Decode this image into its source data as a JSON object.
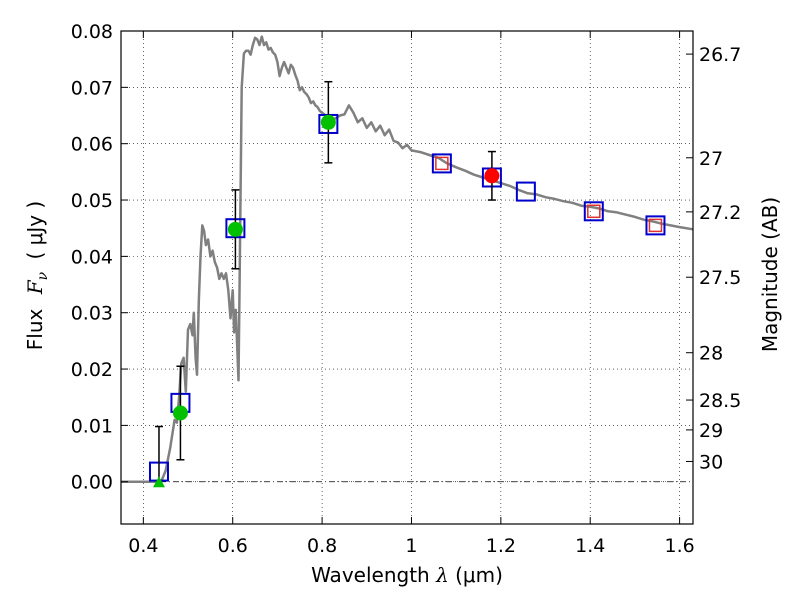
{
  "chart_data": {
    "type": "scatter",
    "title": "",
    "xlabel_text": "Wavelength",
    "xlabel_symbol": "λ",
    "xlabel_unit": "(μm)",
    "ylabel_text": "Flux",
    "ylabel_symbol": "F",
    "ylabel_sub": "ν",
    "ylabel_unit": "( μJy )",
    "y2label": "Magnitude (AB)",
    "xlim": [
      0.35,
      1.63
    ],
    "ylim": [
      -0.0075,
      0.08
    ],
    "grid": true,
    "x_ticks": [
      {
        "value": 0.4,
        "label": "0.4"
      },
      {
        "value": 0.6,
        "label": "0.6"
      },
      {
        "value": 0.8,
        "label": "0.8"
      },
      {
        "value": 1.0,
        "label": "1"
      },
      {
        "value": 1.2,
        "label": "1.2"
      },
      {
        "value": 1.4,
        "label": "1.4"
      },
      {
        "value": 1.6,
        "label": "1.6"
      }
    ],
    "y_ticks": [
      {
        "value": 0.0,
        "label": "0.00"
      },
      {
        "value": 0.01,
        "label": "0.01"
      },
      {
        "value": 0.02,
        "label": "0.02"
      },
      {
        "value": 0.03,
        "label": "0.03"
      },
      {
        "value": 0.04,
        "label": "0.04"
      },
      {
        "value": 0.05,
        "label": "0.05"
      },
      {
        "value": 0.06,
        "label": "0.06"
      },
      {
        "value": 0.07,
        "label": "0.07"
      },
      {
        "value": 0.08,
        "label": "0.08"
      }
    ],
    "y2_ticks": [
      {
        "mag": "26.7",
        "flux": 0.0759
      },
      {
        "mag": "27",
        "flux": 0.0575
      },
      {
        "mag": "27.2",
        "flux": 0.0479
      },
      {
        "mag": "27.5",
        "flux": 0.0363
      },
      {
        "mag": "28",
        "flux": 0.0229
      },
      {
        "mag": "28.5",
        "flux": 0.0145
      },
      {
        "mag": "29",
        "flux": 0.0092
      },
      {
        "mag": "30",
        "flux": 0.0036
      }
    ],
    "model_sed": {
      "name": "model spectrum",
      "color": "#808080",
      "points": [
        [
          0.35,
          0.0
        ],
        [
          0.43,
          0.0
        ],
        [
          0.44,
          0.0
        ],
        [
          0.45,
          0.002
        ],
        [
          0.46,
          0.006
        ],
        [
          0.47,
          0.011
        ],
        [
          0.475,
          0.0105
        ],
        [
          0.48,
          0.015
        ],
        [
          0.485,
          0.021
        ],
        [
          0.49,
          0.022
        ],
        [
          0.495,
          0.016
        ],
        [
          0.5,
          0.027
        ],
        [
          0.505,
          0.028
        ],
        [
          0.51,
          0.026
        ],
        [
          0.513,
          0.03
        ],
        [
          0.517,
          0.022
        ],
        [
          0.52,
          0.019
        ],
        [
          0.524,
          0.032
        ],
        [
          0.528,
          0.04
        ],
        [
          0.532,
          0.0455
        ],
        [
          0.536,
          0.0445
        ],
        [
          0.54,
          0.042
        ],
        [
          0.545,
          0.043
        ],
        [
          0.55,
          0.04
        ],
        [
          0.555,
          0.041
        ],
        [
          0.56,
          0.039
        ],
        [
          0.565,
          0.038
        ],
        [
          0.57,
          0.036
        ],
        [
          0.575,
          0.037
        ],
        [
          0.58,
          0.036
        ],
        [
          0.585,
          0.037
        ],
        [
          0.59,
          0.034
        ],
        [
          0.595,
          0.029
        ],
        [
          0.6,
          0.034
        ],
        [
          0.603,
          0.0265
        ],
        [
          0.607,
          0.0305
        ],
        [
          0.61,
          0.024
        ],
        [
          0.613,
          0.018
        ],
        [
          0.615,
          0.032
        ],
        [
          0.62,
          0.07
        ],
        [
          0.625,
          0.076
        ],
        [
          0.63,
          0.0765
        ],
        [
          0.635,
          0.0765
        ],
        [
          0.64,
          0.0758
        ],
        [
          0.645,
          0.0775
        ],
        [
          0.65,
          0.0788
        ],
        [
          0.655,
          0.0785
        ],
        [
          0.66,
          0.0775
        ],
        [
          0.665,
          0.079
        ],
        [
          0.67,
          0.0775
        ],
        [
          0.675,
          0.078
        ],
        [
          0.68,
          0.0767
        ],
        [
          0.685,
          0.077
        ],
        [
          0.69,
          0.0762
        ],
        [
          0.695,
          0.0758
        ],
        [
          0.7,
          0.0745
        ],
        [
          0.705,
          0.072
        ],
        [
          0.71,
          0.0735
        ],
        [
          0.715,
          0.0745
        ],
        [
          0.72,
          0.0735
        ],
        [
          0.725,
          0.0725
        ],
        [
          0.73,
          0.074
        ],
        [
          0.735,
          0.0735
        ],
        [
          0.74,
          0.0722
        ],
        [
          0.745,
          0.0712
        ],
        [
          0.75,
          0.0695
        ],
        [
          0.755,
          0.07
        ],
        [
          0.76,
          0.0692
        ],
        [
          0.765,
          0.0688
        ],
        [
          0.77,
          0.0682
        ],
        [
          0.775,
          0.0672
        ],
        [
          0.78,
          0.0675
        ],
        [
          0.785,
          0.0668
        ],
        [
          0.79,
          0.0665
        ],
        [
          0.795,
          0.0658
        ],
        [
          0.8,
          0.0655
        ],
        [
          0.805,
          0.0652
        ],
        [
          0.81,
          0.0648
        ],
        [
          0.82,
          0.0642
        ],
        [
          0.83,
          0.0645
        ],
        [
          0.84,
          0.065
        ],
        [
          0.85,
          0.0652
        ],
        [
          0.86,
          0.0668
        ],
        [
          0.87,
          0.0655
        ],
        [
          0.88,
          0.0638
        ],
        [
          0.89,
          0.0645
        ],
        [
          0.9,
          0.0628
        ],
        [
          0.91,
          0.0638
        ],
        [
          0.92,
          0.0622
        ],
        [
          0.93,
          0.0632
        ],
        [
          0.94,
          0.0615
        ],
        [
          0.95,
          0.0625
        ],
        [
          0.96,
          0.0605
        ],
        [
          0.97,
          0.0602
        ],
        [
          0.98,
          0.0592
        ],
        [
          0.99,
          0.0598
        ],
        [
          1.0,
          0.0588
        ],
        [
          1.02,
          0.0585
        ],
        [
          1.04,
          0.058
        ],
        [
          1.06,
          0.0575
        ],
        [
          1.08,
          0.0565
        ],
        [
          1.1,
          0.0558
        ],
        [
          1.12,
          0.0552
        ],
        [
          1.14,
          0.0545
        ],
        [
          1.16,
          0.054
        ],
        [
          1.18,
          0.0535
        ],
        [
          1.2,
          0.053
        ],
        [
          1.22,
          0.0525
        ],
        [
          1.24,
          0.0518
        ],
        [
          1.26,
          0.0512
        ],
        [
          1.28,
          0.051
        ],
        [
          1.3,
          0.0505
        ],
        [
          1.32,
          0.0502
        ],
        [
          1.34,
          0.0498
        ],
        [
          1.36,
          0.0495
        ],
        [
          1.38,
          0.049
        ],
        [
          1.4,
          0.0488
        ],
        [
          1.42,
          0.0485
        ],
        [
          1.44,
          0.048
        ],
        [
          1.46,
          0.0478
        ],
        [
          1.48,
          0.0474
        ],
        [
          1.5,
          0.047
        ],
        [
          1.52,
          0.0465
        ],
        [
          1.54,
          0.0462
        ],
        [
          1.56,
          0.0458
        ],
        [
          1.58,
          0.0455
        ],
        [
          1.6,
          0.0452
        ],
        [
          1.63,
          0.0448
        ]
      ]
    },
    "series": [
      {
        "name": "model photometry (blue squares)",
        "marker": "square",
        "color": "#0000cc",
        "points": [
          [
            0.435,
            0.0018
          ],
          [
            0.483,
            0.014
          ],
          [
            0.606,
            0.045
          ],
          [
            0.814,
            0.0635
          ],
          [
            1.068,
            0.0565
          ],
          [
            1.18,
            0.054
          ],
          [
            1.256,
            0.0515
          ],
          [
            1.408,
            0.048
          ],
          [
            1.546,
            0.0455
          ]
        ]
      },
      {
        "name": "measured photometry (green circles)",
        "marker": "circle",
        "color": "#00c000",
        "points": [
          [
            0.483,
            0.0122,
            0.0083
          ],
          [
            0.606,
            0.0448,
            0.007
          ],
          [
            0.814,
            0.0638,
            0.0072
          ]
        ]
      },
      {
        "name": "upper limit (green triangle)",
        "marker": "triangle",
        "color": "#00c000",
        "points": [
          [
            0.435,
            -0.0001,
            0.0099
          ]
        ]
      },
      {
        "name": "measured photometry (red circle)",
        "marker": "circle",
        "color": "#ff0000",
        "points": [
          [
            1.18,
            0.0543,
            0.0043
          ]
        ]
      },
      {
        "name": "predicted photometry (red squares)",
        "marker": "square-small",
        "color": "#e03030",
        "points": [
          [
            1.068,
            0.0565
          ],
          [
            1.408,
            0.048
          ],
          [
            1.546,
            0.0455
          ]
        ]
      }
    ]
  }
}
